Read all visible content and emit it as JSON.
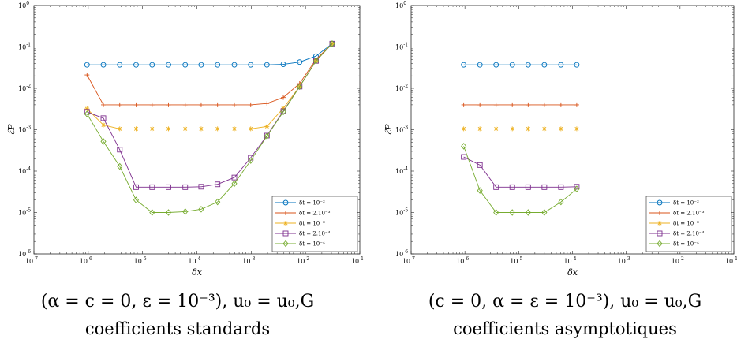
{
  "chart_data": [
    {
      "type": "line",
      "x_scale": "log",
      "y_scale": "log",
      "xlabel": "δx",
      "ylabel": "ℰP",
      "xlim": [
        1e-07,
        0.1
      ],
      "ylim": [
        1e-06,
        1
      ],
      "x_ticks": [
        "10",
        "10",
        "10",
        "10",
        "10",
        "10",
        "10"
      ],
      "x_tick_exponents": [
        "-7",
        "-6",
        "-5",
        "-4",
        "-3",
        "-2",
        "-1"
      ],
      "y_ticks": [
        "10",
        "10",
        "10",
        "10",
        "10",
        "10",
        "10"
      ],
      "y_tick_exponents": [
        "-6",
        "-5",
        "-4",
        "-3",
        "-2",
        "-1",
        "0"
      ],
      "legend_position": "bottom-right",
      "caption_line1": "(α = c = 0, ε = 10⁻³), u₀ = u₀,G",
      "caption_line2": "coefficients standards",
      "series": [
        {
          "name": "δt = 10⁻²",
          "color": "#0072BD",
          "marker": "circle",
          "x": [
            9.5e-07,
            1.9e-06,
            3.8e-06,
            7.6e-06,
            1.5e-05,
            3e-05,
            6.1e-05,
            0.00012,
            0.00024,
            0.00049,
            0.00098,
            0.00195,
            0.0039,
            0.0078,
            0.0156,
            0.031
          ],
          "y": [
            0.037,
            0.037,
            0.037,
            0.037,
            0.037,
            0.037,
            0.037,
            0.037,
            0.037,
            0.037,
            0.037,
            0.037,
            0.038,
            0.043,
            0.06,
            0.12
          ]
        },
        {
          "name": "δt = 2.10⁻³",
          "color": "#D95319",
          "marker": "plus",
          "x": [
            9.5e-07,
            1.9e-06,
            3.8e-06,
            7.6e-06,
            1.5e-05,
            3e-05,
            6.1e-05,
            0.00012,
            0.00024,
            0.00049,
            0.00098,
            0.00195,
            0.0039,
            0.0078,
            0.0156,
            0.031
          ],
          "y": [
            0.021,
            0.004,
            0.004,
            0.004,
            0.004,
            0.004,
            0.004,
            0.004,
            0.004,
            0.004,
            0.004,
            0.0043,
            0.006,
            0.013,
            0.05,
            0.12
          ]
        },
        {
          "name": "δt = 10⁻³",
          "color": "#EDB120",
          "marker": "asterisk",
          "x": [
            9.5e-07,
            1.9e-06,
            3.8e-06,
            7.6e-06,
            1.5e-05,
            3e-05,
            6.1e-05,
            0.00012,
            0.00024,
            0.00049,
            0.00098,
            0.00195,
            0.0039,
            0.0078,
            0.0156,
            0.031
          ],
          "y": [
            0.0032,
            0.0013,
            0.00105,
            0.00105,
            0.00105,
            0.00105,
            0.00105,
            0.00105,
            0.00105,
            0.00105,
            0.00105,
            0.0012,
            0.0033,
            0.011,
            0.046,
            0.12
          ]
        },
        {
          "name": "δt = 2.10⁻⁴",
          "color": "#7E2F8E",
          "marker": "square",
          "x": [
            9.5e-07,
            1.9e-06,
            3.8e-06,
            7.6e-06,
            1.5e-05,
            3e-05,
            6.1e-05,
            0.00012,
            0.00024,
            0.00049,
            0.00098,
            0.00195,
            0.0039,
            0.0078,
            0.0156,
            0.031
          ],
          "y": [
            0.0027,
            0.0019,
            0.00033,
            4.1e-05,
            4.1e-05,
            4.1e-05,
            4.1e-05,
            4.2e-05,
            4.8e-05,
            7e-05,
            0.00021,
            0.00072,
            0.0028,
            0.011,
            0.046,
            0.12
          ]
        },
        {
          "name": "δt = 10⁻⁴",
          "color": "#77AC30",
          "marker": "diamond",
          "x": [
            9.5e-07,
            1.9e-06,
            3.8e-06,
            7.6e-06,
            1.5e-05,
            3e-05,
            6.1e-05,
            0.00012,
            0.00024,
            0.00049,
            0.00098,
            0.00195,
            0.0039,
            0.0078,
            0.0156,
            0.031
          ],
          "y": [
            0.0024,
            0.00052,
            0.00013,
            2e-05,
            1e-05,
            1e-05,
            1.05e-05,
            1.2e-05,
            1.8e-05,
            5e-05,
            0.00018,
            0.0007,
            0.0027,
            0.011,
            0.046,
            0.12
          ]
        }
      ]
    },
    {
      "type": "line",
      "x_scale": "log",
      "y_scale": "log",
      "xlabel": "δx",
      "ylabel": "ℰP",
      "xlim": [
        1e-07,
        0.1
      ],
      "ylim": [
        1e-06,
        1
      ],
      "x_ticks": [
        "10",
        "10",
        "10",
        "10",
        "10",
        "10",
        "10"
      ],
      "x_tick_exponents": [
        "-7",
        "-6",
        "-5",
        "-4",
        "-3",
        "-2",
        "-1"
      ],
      "y_ticks": [
        "10",
        "10",
        "10",
        "10",
        "10",
        "10",
        "10"
      ],
      "y_tick_exponents": [
        "-6",
        "-5",
        "-4",
        "-3",
        "-2",
        "-1",
        "0"
      ],
      "legend_position": "bottom-right",
      "caption_line1": "(c = 0, α = ε = 10⁻³), u₀ = u₀,G",
      "caption_line2": "coefficients asymptotiques",
      "series": [
        {
          "name": "δt = 10⁻²",
          "color": "#0072BD",
          "marker": "circle",
          "x": [
            9.5e-07,
            1.9e-06,
            3.8e-06,
            7.6e-06,
            1.5e-05,
            3e-05,
            6.1e-05,
            0.00012
          ],
          "y": [
            0.037,
            0.037,
            0.037,
            0.037,
            0.037,
            0.037,
            0.037,
            0.037
          ]
        },
        {
          "name": "δt = 2.10⁻³",
          "color": "#D95319",
          "marker": "plus",
          "x": [
            9.5e-07,
            1.9e-06,
            3.8e-06,
            7.6e-06,
            1.5e-05,
            3e-05,
            6.1e-05,
            0.00012
          ],
          "y": [
            0.004,
            0.004,
            0.004,
            0.004,
            0.004,
            0.004,
            0.004,
            0.004
          ]
        },
        {
          "name": "δt = 10⁻³",
          "color": "#EDB120",
          "marker": "asterisk",
          "x": [
            9.5e-07,
            1.9e-06,
            3.8e-06,
            7.6e-06,
            1.5e-05,
            3e-05,
            6.1e-05,
            0.00012
          ],
          "y": [
            0.00105,
            0.00105,
            0.00105,
            0.00105,
            0.00105,
            0.00105,
            0.00105,
            0.00105
          ]
        },
        {
          "name": "δt = 2.10⁻⁴",
          "color": "#7E2F8E",
          "marker": "square",
          "x": [
            9.5e-07,
            1.9e-06,
            3.8e-06,
            7.6e-06,
            1.5e-05,
            3e-05,
            6.1e-05,
            0.00012
          ],
          "y": [
            0.00022,
            0.00014,
            4.1e-05,
            4.1e-05,
            4.1e-05,
            4.1e-05,
            4.1e-05,
            4.2e-05
          ]
        },
        {
          "name": "δt = 10⁻⁴",
          "color": "#77AC30",
          "marker": "diamond",
          "x": [
            9.5e-07,
            1.9e-06,
            3.8e-06,
            7.6e-06,
            1.5e-05,
            3e-05,
            6.1e-05,
            0.00012
          ],
          "y": [
            0.0004,
            3.4e-05,
            1e-05,
            1e-05,
            1e-05,
            1e-05,
            1.8e-05,
            3.7e-05
          ]
        }
      ]
    }
  ]
}
